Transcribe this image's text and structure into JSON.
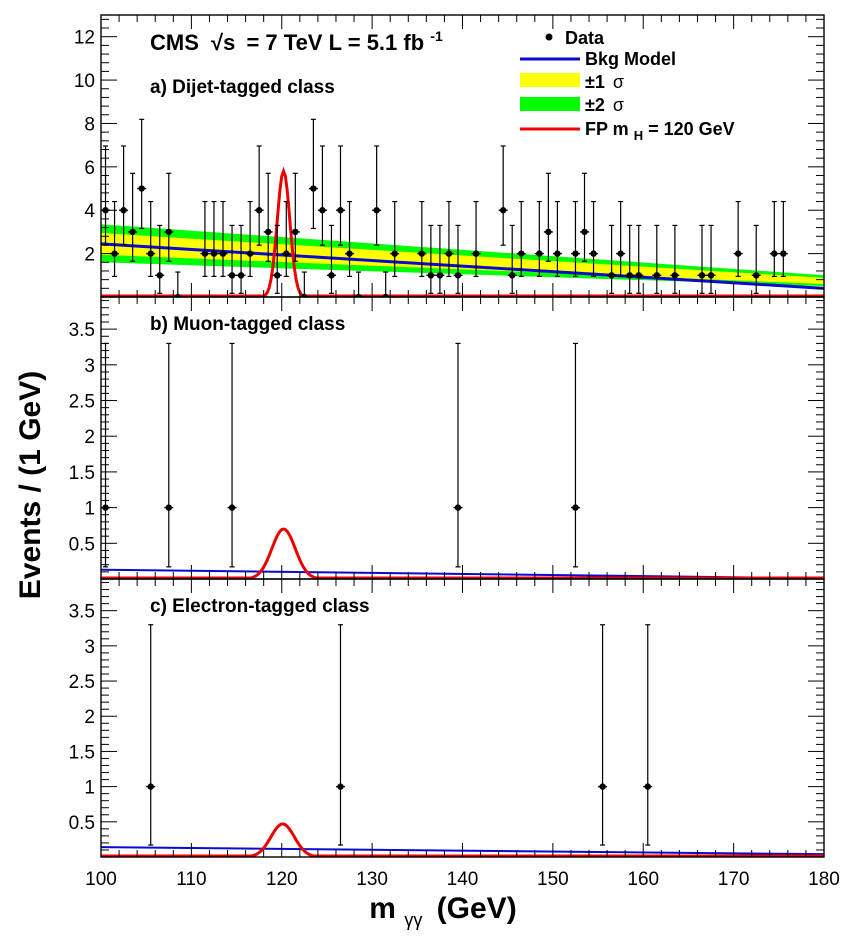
{
  "cms": {
    "label": "CMS",
    "sqrt": "√s",
    "rest": "= 7 TeV L = 5.1 fb",
    "sup": "-1"
  },
  "legend": {
    "data": "Data",
    "bkg": "Bkg Model",
    "one_sigma": "±1",
    "two_sigma": "±2",
    "sigma_symbol": "σ",
    "fp_main": "FP m",
    "fp_sub": "H",
    "fp_rest": "= 120 GeV"
  },
  "colors": {
    "bkg": "#0a0ad2",
    "one_sigma": "#ffff00",
    "two_sigma": "#00ff00",
    "signal": "#ee0000",
    "data": "#000000"
  },
  "xlabel": {
    "main": "m",
    "sub": "γγ",
    "unit": "(GeV)"
  },
  "ylabel": "Events / (1 GeV)",
  "chart_data": [
    {
      "type": "scatter",
      "title": "a) Dijet-tagged class",
      "x_range": [
        100,
        180
      ],
      "y_range": [
        0,
        13
      ],
      "x_ticks": [],
      "y_ticks": [
        "2",
        "4",
        "6",
        "8",
        "10",
        "12"
      ],
      "y_tick_values": [
        2,
        4,
        6,
        8,
        10,
        12
      ],
      "data_x": [
        100.5,
        101.5,
        102.5,
        103.5,
        104.5,
        105.5,
        106.5,
        107.5,
        108.5,
        111.5,
        112.5,
        113.5,
        114.5,
        115.5,
        116.5,
        117.5,
        118.5,
        119.5,
        120.5,
        121.5,
        122.5,
        123.5,
        124.5,
        125.5,
        126.5,
        127.5,
        128.5,
        130.5,
        131.5,
        132.5,
        135.5,
        136.5,
        137.5,
        138.5,
        139.5,
        141.5,
        144.5,
        145.5,
        146.5,
        148.5,
        149.5,
        150.5,
        152.5,
        153.5,
        154.5,
        156.5,
        157.5,
        158.5,
        159.5,
        161.5,
        163.5,
        166.5,
        167.5,
        170.5,
        172.5,
        174.5,
        175.5
      ],
      "data_y": [
        4,
        2,
        4,
        3,
        5,
        2,
        1,
        3,
        0,
        2,
        2,
        2,
        1,
        1,
        2,
        4,
        3,
        1,
        2,
        3,
        0,
        5,
        4,
        1,
        4,
        2,
        0,
        4,
        0,
        2,
        2,
        1,
        1,
        2,
        1,
        2,
        4,
        1,
        2,
        2,
        3,
        2,
        2,
        3,
        2,
        1,
        2,
        1,
        1,
        1,
        1,
        1,
        1,
        2,
        1,
        2,
        2
      ],
      "bkg_model": {
        "x": [
          100,
          180
        ],
        "y": [
          2.45,
          0.4
        ]
      },
      "two_sigma_band": {
        "x": [
          100,
          180
        ],
        "upper": [
          3.35,
          1.0
        ],
        "lower": [
          1.6,
          0.5
        ]
      },
      "one_sigma_band": {
        "x": [
          100,
          180
        ],
        "upper": [
          2.95,
          0.88
        ],
        "lower": [
          1.95,
          0.6
        ]
      },
      "signal": {
        "mean": 120.2,
        "sigma": 0.7,
        "peak": 5.8
      }
    },
    {
      "type": "scatter",
      "title": "b) Muon-tagged class",
      "x_range": [
        100,
        180
      ],
      "y_range": [
        0,
        3.95
      ],
      "x_ticks": [],
      "y_ticks": [
        "0.5",
        "1",
        "1.5",
        "2",
        "2.5",
        "3",
        "3.5"
      ],
      "y_tick_values": [
        0.5,
        1,
        1.5,
        2,
        2.5,
        3,
        3.5
      ],
      "data_x": [
        100.5,
        107.5,
        114.5,
        139.5,
        152.5
      ],
      "data_y": [
        1,
        1,
        1,
        1,
        1
      ],
      "bkg_model": {
        "x": [
          100,
          180
        ],
        "y": [
          0.13,
          0.01
        ]
      },
      "signal": {
        "mean": 120.2,
        "sigma": 1.3,
        "peak": 0.7
      }
    },
    {
      "type": "scatter",
      "title": "c) Electron-tagged class",
      "x_range": [
        100,
        180
      ],
      "y_range": [
        0,
        3.95
      ],
      "x_ticks": [
        "100",
        "110",
        "120",
        "130",
        "140",
        "150",
        "160",
        "170",
        "180"
      ],
      "y_ticks": [
        "0.5",
        "1",
        "1.5",
        "2",
        "2.5",
        "3",
        "3.5"
      ],
      "y_tick_values": [
        0.5,
        1,
        1.5,
        2,
        2.5,
        3,
        3.5
      ],
      "data_x": [
        105.5,
        126.5,
        155.5,
        160.5
      ],
      "data_y": [
        1,
        1,
        1,
        1
      ],
      "bkg_model": {
        "x": [
          100,
          180
        ],
        "y": [
          0.14,
          0.04
        ]
      },
      "signal": {
        "mean": 120.1,
        "sigma": 1.3,
        "peak": 0.47
      }
    }
  ]
}
